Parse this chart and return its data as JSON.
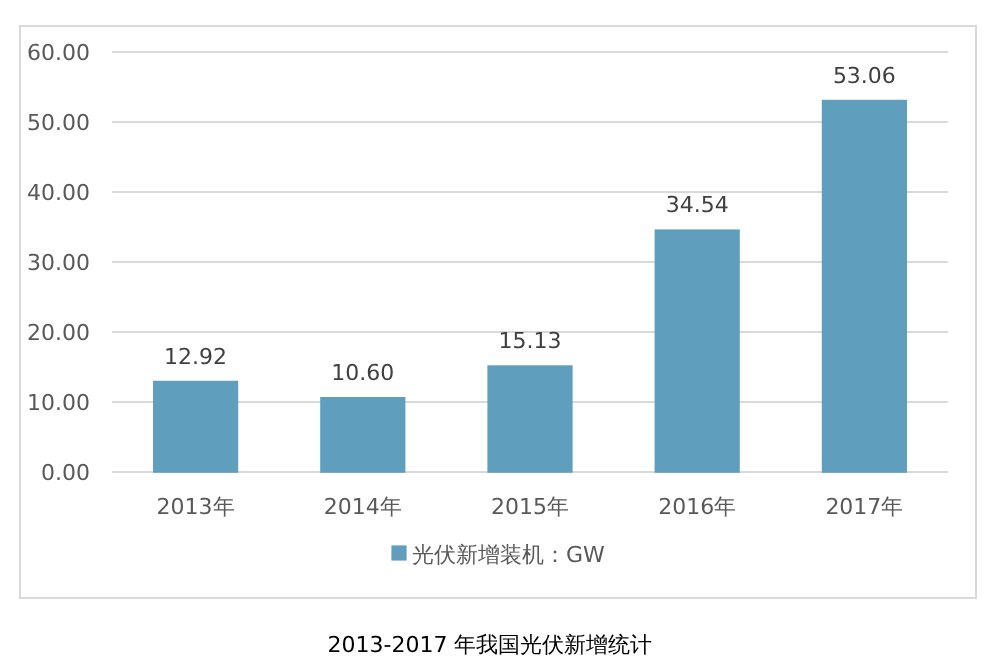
{
  "chart_data": {
    "type": "bar",
    "title": "2013-2017 年我国光伏新增统计",
    "categories": [
      "2013年",
      "2014年",
      "2015年",
      "2016年",
      "2017年"
    ],
    "series": [
      {
        "name": "光伏新增装机：GW",
        "color": "#5f9fbd",
        "values": [
          12.92,
          10.6,
          15.13,
          34.54,
          53.06
        ],
        "value_labels": [
          "12.92",
          "10.60",
          "15.13",
          "34.54",
          "53.06"
        ]
      }
    ],
    "ylim": [
      0,
      60
    ],
    "yticks": [
      {
        "value": 0,
        "label": "0.00"
      },
      {
        "value": 10,
        "label": "10.00"
      },
      {
        "value": 20,
        "label": "20.00"
      },
      {
        "value": 30,
        "label": "30.00"
      },
      {
        "value": 40,
        "label": "40.00"
      },
      {
        "value": 50,
        "label": "50.00"
      },
      {
        "value": 60,
        "label": "60.00"
      }
    ],
    "grid": "y",
    "legend": "bottom"
  }
}
